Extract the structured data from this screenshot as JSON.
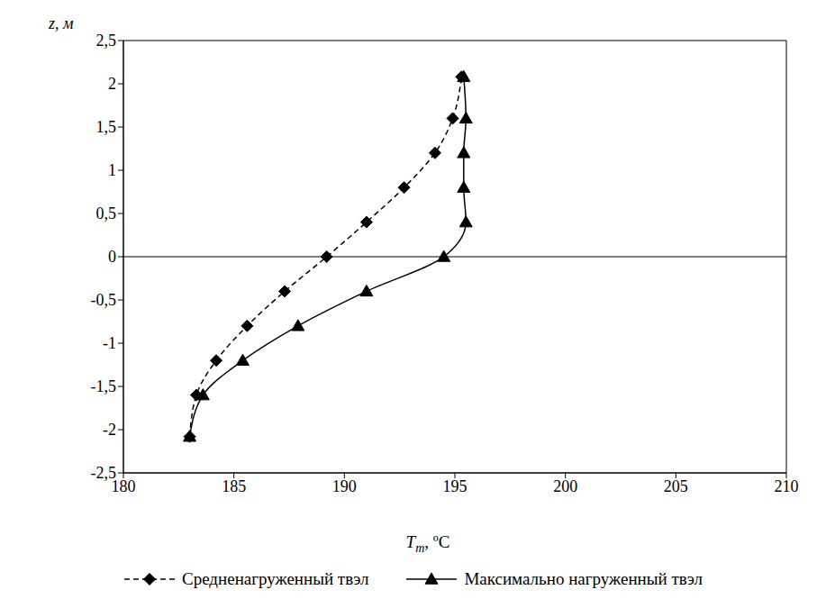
{
  "chart_data": {
    "type": "line",
    "x_label": "Tm, ºC",
    "y_label": "z, м",
    "xlim": [
      180,
      210
    ],
    "xticks": [
      180,
      185,
      190,
      195,
      200,
      205,
      210
    ],
    "ylim": [
      -2.5,
      2.5
    ],
    "yticks": [
      {
        "value": -2.5,
        "label": "-2,5"
      },
      -2,
      {
        "value": -1.5,
        "label": "-1,5"
      },
      -1,
      {
        "value": -0.5,
        "label": "-0,5"
      },
      0,
      {
        "value": 0.5,
        "label": "0,5"
      },
      1,
      {
        "value": 1.5,
        "label": "1,5"
      },
      2,
      {
        "value": 2.5,
        "label": "2,5"
      }
    ],
    "grid": false,
    "legend": "bottom",
    "y": [
      -2.08,
      -1.6,
      -1.2,
      -0.8,
      -0.4,
      0,
      0.4,
      0.8,
      1.2,
      1.6,
      2.08
    ],
    "series": [
      {
        "name": "Средненагруженный твэл",
        "color": "#000000",
        "marker": "diamond",
        "line_style": "dashed",
        "x": [
          183.0,
          183.3,
          184.2,
          185.6,
          187.3,
          189.2,
          191.0,
          192.7,
          194.1,
          194.9,
          195.3
        ]
      },
      {
        "name": "Максимально нагруженный твэл",
        "color": "#000000",
        "marker": "triangle",
        "line_style": "solid",
        "x": [
          183.0,
          183.6,
          185.4,
          187.9,
          191.0,
          194.5,
          195.5,
          195.4,
          195.4,
          195.5,
          195.4
        ]
      }
    ]
  }
}
